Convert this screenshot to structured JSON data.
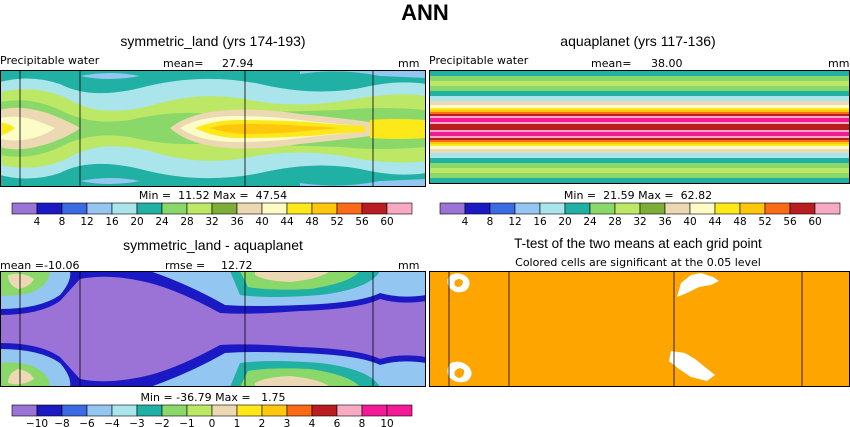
{
  "title": "ANN",
  "colors": {
    "pw": [
      "#9b72d6",
      "#1b19c4",
      "#3b6ae3",
      "#93c6f0",
      "#a9e5ea",
      "#21b1a4",
      "#8ad86a",
      "#bce865",
      "#7ead3a",
      "#ecd8b2",
      "#fcfcc6",
      "#fde81a",
      "#fec60c",
      "#fb6a16",
      "#b91d22",
      "#f7aac1",
      "#f31a97"
    ],
    "diff": [
      "#9b72d6",
      "#1b19c4",
      "#3b6ae3",
      "#93c6f0",
      "#a9e5ea",
      "#21b1a4",
      "#8ad86a",
      "#bce865",
      "#ecd8b2",
      "#fde81a",
      "#fec60c",
      "#fb6a16",
      "#b91d22",
      "#f7aac1",
      "#f31a97"
    ],
    "sig": "#ffa500"
  },
  "panels": {
    "p1": {
      "title": "symmetric_land (yrs 174-193)",
      "var": "Precipitable water",
      "mean_label": "mean=",
      "mean": "27.94",
      "units": "mm",
      "minmax": "Min =  11.52 Max =  47.54"
    },
    "p2": {
      "title": "aquaplanet (yrs 117-136)",
      "var": "Precipitable water",
      "mean_label": "mean=",
      "mean": "38.00",
      "units": "mm",
      "minmax": "Min =  21.59 Max =  62.82"
    },
    "p3": {
      "title": "symmetric_land - aquaplanet",
      "mean_label": "mean =",
      "mean": "-10.06",
      "rmse_label": "rmse =",
      "rmse": "12.72",
      "units": "mm",
      "minmax": "Min = -36.79 Max =   1.75"
    },
    "p4": {
      "title": "T-test of the two means at each grid point",
      "subtitle": "Colored cells are significant at the 0.05 level"
    }
  },
  "chart_data": [
    {
      "type": "heatmap",
      "title": "symmetric_land (yrs 174-193)",
      "variable": "Precipitable water",
      "units": "mm",
      "mean": 27.94,
      "min": 11.52,
      "max": 47.54,
      "levels": [
        "4",
        "8",
        "12",
        "16",
        "20",
        "24",
        "28",
        "32",
        "36",
        "40",
        "44",
        "48",
        "52",
        "56",
        "60"
      ]
    },
    {
      "type": "heatmap",
      "title": "aquaplanet (yrs 117-136)",
      "variable": "Precipitable water",
      "units": "mm",
      "mean": 38.0,
      "min": 21.59,
      "max": 62.82,
      "levels": [
        "4",
        "8",
        "12",
        "16",
        "20",
        "24",
        "28",
        "32",
        "36",
        "40",
        "44",
        "48",
        "52",
        "56",
        "60"
      ]
    },
    {
      "type": "heatmap",
      "title": "symmetric_land - aquaplanet",
      "units": "mm",
      "mean": -10.06,
      "rmse": 12.72,
      "min": -36.79,
      "max": 1.75,
      "levels": [
        "−10",
        "−8",
        "−6",
        "−4",
        "−3",
        "−2",
        "−1",
        "0",
        "1",
        "2",
        "3",
        "4",
        "6",
        "8",
        "10"
      ]
    },
    {
      "type": "heatmap",
      "title": "T-test of the two means at each grid point",
      "subtitle": "Colored cells are significant at the 0.05 level"
    }
  ]
}
